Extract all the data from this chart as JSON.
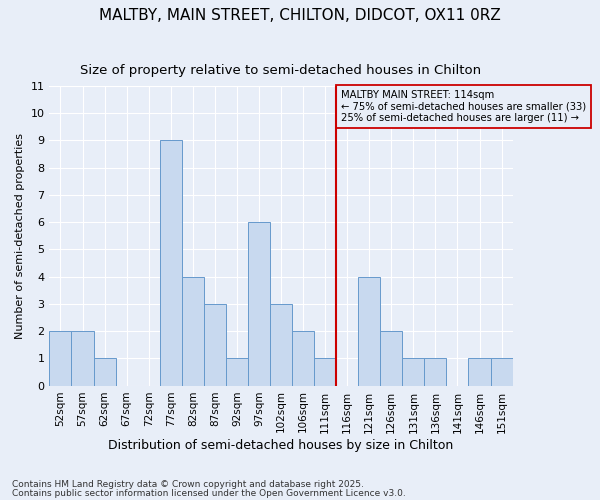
{
  "title": "MALTBY, MAIN STREET, CHILTON, DIDCOT, OX11 0RZ",
  "subtitle": "Size of property relative to semi-detached houses in Chilton",
  "xlabel": "Distribution of semi-detached houses by size in Chilton",
  "ylabel": "Number of semi-detached properties",
  "footnote1": "Contains HM Land Registry data © Crown copyright and database right 2025.",
  "footnote2": "Contains public sector information licensed under the Open Government Licence v3.0.",
  "bins": [
    "52sqm",
    "57sqm",
    "62sqm",
    "67sqm",
    "72sqm",
    "77sqm",
    "82sqm",
    "87sqm",
    "92sqm",
    "97sqm",
    "102sqm",
    "106sqm",
    "111sqm",
    "116sqm",
    "121sqm",
    "126sqm",
    "131sqm",
    "136sqm",
    "141sqm",
    "146sqm",
    "151sqm"
  ],
  "values": [
    2,
    2,
    1,
    0,
    0,
    9,
    4,
    3,
    1,
    6,
    3,
    2,
    1,
    0,
    4,
    2,
    1,
    1,
    0,
    1,
    1
  ],
  "bar_color": "#c8d9ef",
  "bar_edge_color": "#6699cc",
  "reference_line_label": "MALTBY MAIN STREET: 114sqm",
  "pct_smaller": "75% of semi-detached houses are smaller (33)",
  "pct_larger": "25% of semi-detached houses are larger (11)",
  "ylim": [
    0,
    11
  ],
  "yticks": [
    0,
    1,
    2,
    3,
    4,
    5,
    6,
    7,
    8,
    9,
    10,
    11
  ],
  "background_color": "#e8eef8",
  "grid_color": "#ffffff",
  "title_fontsize": 11,
  "subtitle_fontsize": 9.5,
  "annotation_box_edge_color": "#cc0000",
  "annotation_line_color": "#cc0000",
  "ref_line_index": 12.5,
  "footnote_fontsize": 6.5,
  "xlabel_fontsize": 9,
  "ylabel_fontsize": 8
}
